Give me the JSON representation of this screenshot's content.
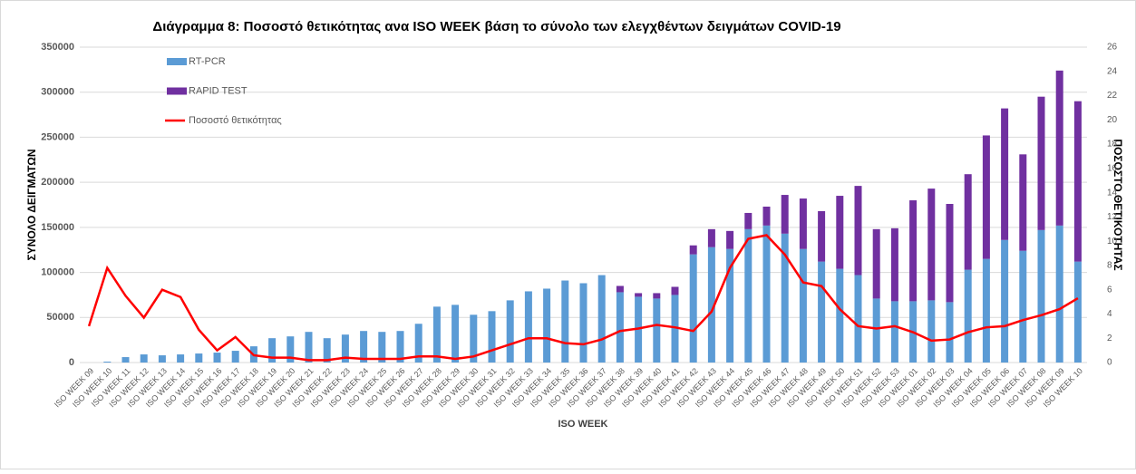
{
  "chart_data": {
    "type": "bar-line",
    "title": "Διάγραμμα 8: Ποσοστό  θετικότητας ανα ISO WEEK  βάση το σύνολο των ελεγχθέντων δειγμάτων COVID-19",
    "x_label": "ISO WEEK",
    "y_label": "ΣΥΝΟΛΟ ΔΕΙΓΜΑΤΩΝ",
    "y2_label": "ΠΟΣΟΣΤΟ ΘΕΤΙΚΟΤΗΤΑΣ",
    "categories": [
      "ISO WEEK 09",
      "ISO WEEK 10",
      "ISO WEEK 11",
      "ISO WEEK 12",
      "ISO WEEK 13",
      "ISO WEEK 14",
      "ISO WEEK 15",
      "ISO WEEK 16",
      "ISO WEEK 17",
      "ISO WEEK 18",
      "ISO WEEK 19",
      "ISO WEEK 20",
      "ISO WEEK 21",
      "ISO WEEK 22",
      "ISO WEEK 23",
      "ISO WEEK 24",
      "ISO WEEK 25",
      "ISO WEEK 26",
      "ISO WEEK 27",
      "ISO WEEK 28",
      "ISO WEEK 29",
      "ISO WEEK 30",
      "ISO WEEK 31",
      "ISO WEEK 32",
      "ISO WEEK 33",
      "ISO WEEK 34",
      "ISO WEEK 35",
      "ISO WEEK 36",
      "ISO WEEK 37",
      "ISO WEEK 38",
      "ISO WEEK 39",
      "ISO WEEK 40",
      "ISO WEEK 41",
      "ISO WEEK 42",
      "ISO WEEK 43",
      "ISO WEEK 44",
      "ISO WEEK 45",
      "ISO WEEK 46",
      "ISO WEEK 47",
      "ISO WEEK 48",
      "ISO WEEK 49",
      "ISO WEEK 50",
      "ISO WEEK 51",
      "ISO WEEK 52",
      "ISO WEEK 53",
      "ISO WEEK 01",
      "ISO WEEK 02",
      "ISO WEEK 03",
      "ISO WEEK 04",
      "ISO WEEK 05",
      "ISO WEEK 06",
      "ISO WEEK 07",
      "ISO WEEK 08",
      "ISO WEEK 09",
      "ISO WEEK 10"
    ],
    "series": [
      {
        "name": "RT-PCR",
        "color": "#5b9bd5",
        "values": [
          0,
          1000,
          6000,
          9000,
          8000,
          9000,
          10000,
          11000,
          13000,
          18000,
          27000,
          29000,
          34000,
          27000,
          31000,
          35000,
          34000,
          35000,
          43000,
          62000,
          64000,
          53000,
          57000,
          69000,
          79000,
          82000,
          91000,
          88000,
          97000,
          78000,
          73000,
          71000,
          75000,
          120000,
          128000,
          126000,
          148000,
          152000,
          143000,
          126000,
          112000,
          104000,
          97000,
          71000,
          68000,
          68000,
          69000,
          67000,
          103000,
          115000,
          136000,
          124000,
          147000,
          152000,
          112000
        ]
      },
      {
        "name": "RAPID TEST",
        "color": "#7030a0",
        "values": [
          0,
          0,
          0,
          0,
          0,
          0,
          0,
          0,
          0,
          0,
          0,
          0,
          0,
          0,
          0,
          0,
          0,
          0,
          0,
          0,
          0,
          0,
          0,
          0,
          0,
          0,
          0,
          0,
          0,
          7000,
          4000,
          6000,
          9000,
          10000,
          20000,
          20000,
          18000,
          21000,
          43000,
          56000,
          56000,
          81000,
          99000,
          77000,
          81000,
          112000,
          124000,
          109000,
          106000,
          137000,
          146000,
          107000,
          148000,
          172000,
          178000
        ]
      },
      {
        "name": "Ποσοστό θετικότητας",
        "color": "#ff0000",
        "axis": "y2",
        "values": [
          3,
          7.8,
          5.5,
          3.7,
          6,
          5.4,
          2.7,
          1,
          2.1,
          0.6,
          0.4,
          0.4,
          0.2,
          0.2,
          0.4,
          0.3,
          0.3,
          0.3,
          0.5,
          0.5,
          0.3,
          0.5,
          1,
          1.5,
          2,
          2,
          1.6,
          1.5,
          1.9,
          2.6,
          2.8,
          3.1,
          2.9,
          2.6,
          4.2,
          7.8,
          10.2,
          10.5,
          8.9,
          6.6,
          6.3,
          4.4,
          3,
          2.8,
          3,
          2.5,
          1.8,
          1.9,
          2.5,
          2.9,
          3,
          3.5,
          3.9,
          4.4,
          5.3
        ]
      }
    ],
    "ylim": [
      0,
      350000
    ],
    "yticks": [
      0,
      50000,
      100000,
      150000,
      200000,
      250000,
      300000,
      350000
    ],
    "y2lim": [
      0,
      26
    ],
    "y2ticks": [
      0,
      2,
      4,
      6,
      8,
      10,
      12,
      14,
      16,
      18,
      20,
      22,
      24,
      26
    ],
    "grid": true
  }
}
